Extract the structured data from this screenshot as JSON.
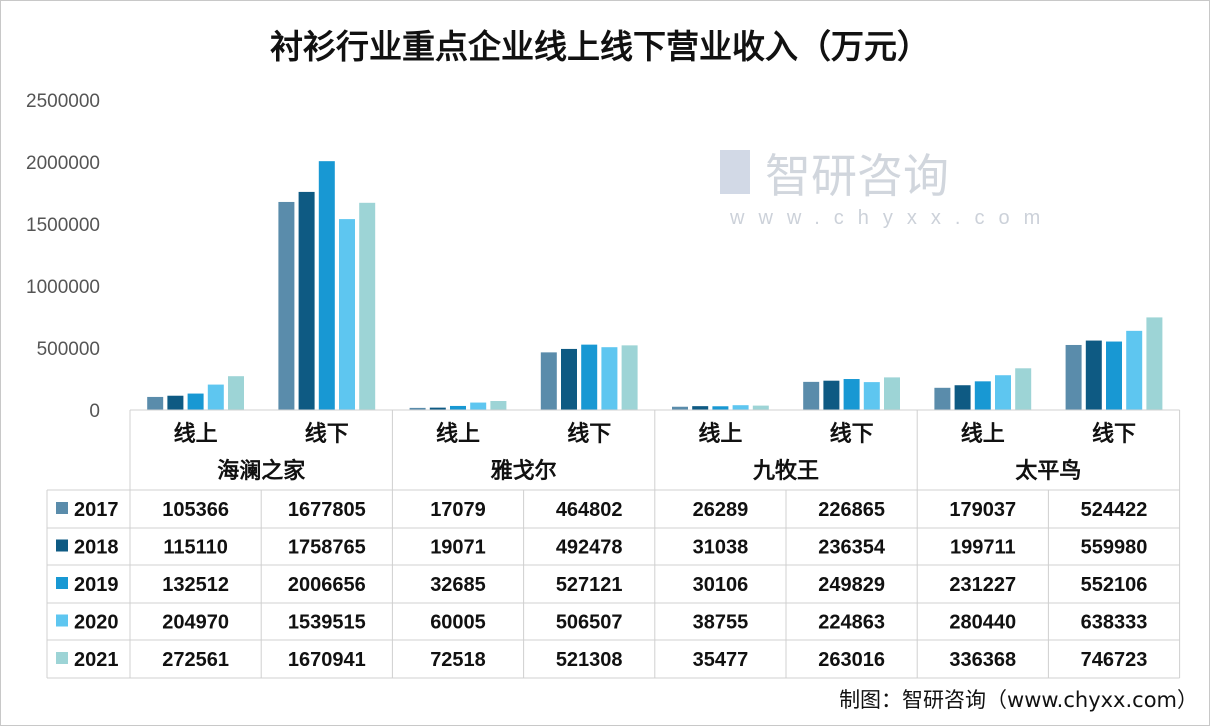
{
  "chart_data": {
    "type": "bar",
    "title": "衬衫行业重点企业线上线下营业收入（万元）",
    "groups": [
      "海澜之家",
      "雅戈尔",
      "九牧王",
      "太平鸟"
    ],
    "subcategories": [
      "线上",
      "线下"
    ],
    "categories": [
      "海澜之家-线上",
      "海澜之家-线下",
      "雅戈尔-线上",
      "雅戈尔-线下",
      "九牧王-线上",
      "九牧王-线下",
      "太平鸟-线上",
      "太平鸟-线下"
    ],
    "series": [
      {
        "name": "2017",
        "color": "#5a8cab",
        "values": [
          105366,
          1677805,
          17079,
          464802,
          26289,
          226865,
          179037,
          524422
        ]
      },
      {
        "name": "2018",
        "color": "#0e5a83",
        "values": [
          115110,
          1758765,
          19071,
          492478,
          31038,
          236354,
          199711,
          559980
        ]
      },
      {
        "name": "2019",
        "color": "#1898d3",
        "values": [
          132512,
          2006656,
          32685,
          527121,
          30106,
          249829,
          231227,
          552106
        ]
      },
      {
        "name": "2020",
        "color": "#5ec6f0",
        "values": [
          204970,
          1539515,
          60005,
          506507,
          38755,
          224863,
          280440,
          638333
        ]
      },
      {
        "name": "2021",
        "color": "#9dd4d6",
        "values": [
          272561,
          1670941,
          72518,
          521308,
          35477,
          263016,
          336368,
          746723
        ]
      }
    ],
    "ylim": [
      0,
      2500000
    ],
    "yticks": [
      "0",
      "500000",
      "1000000",
      "1500000",
      "2000000",
      "2500000"
    ],
    "grid": false,
    "legend": "data-table"
  },
  "source": "制图：智研咨询（www.chyxx.com）",
  "watermark": {
    "text": "智研咨询",
    "url": "www.chyxx.com"
  }
}
